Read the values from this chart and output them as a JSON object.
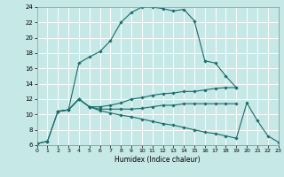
{
  "xlabel": "Humidex (Indice chaleur)",
  "bg_color": "#c6e8e6",
  "grid_color": "#ffffff",
  "line_color": "#1a6b6b",
  "xlim": [
    0,
    23
  ],
  "ylim": [
    6,
    24
  ],
  "xtick_labels": [
    "0",
    "1",
    "2",
    "3",
    "4",
    "5",
    "6",
    "7",
    "8",
    "9",
    "10",
    "11",
    "12",
    "13",
    "14",
    "15",
    "16",
    "17",
    "18",
    "19",
    "20",
    "21",
    "22",
    "23"
  ],
  "ytick_labels": [
    "6",
    "8",
    "10",
    "12",
    "14",
    "16",
    "18",
    "20",
    "22",
    "24"
  ],
  "ytick_pos": [
    6,
    8,
    10,
    12,
    14,
    16,
    18,
    20,
    22,
    24
  ],
  "curve1_x": [
    0,
    1,
    2,
    3,
    4,
    5,
    6,
    7,
    8,
    9,
    10,
    11,
    12,
    13,
    14,
    15,
    16,
    17,
    18,
    19
  ],
  "curve1_y": [
    6.2,
    6.5,
    10.4,
    10.6,
    16.7,
    17.5,
    18.2,
    19.6,
    22.0,
    23.3,
    24.0,
    24.0,
    23.8,
    23.5,
    23.7,
    22.2,
    17.0,
    16.7,
    15.0,
    13.5
  ],
  "curve2_x": [
    2,
    3,
    4,
    5,
    6,
    7,
    8,
    9,
    10,
    11,
    12,
    13,
    14,
    15,
    16,
    17,
    18,
    19
  ],
  "curve2_y": [
    10.4,
    10.6,
    12.0,
    11.0,
    11.0,
    11.2,
    11.5,
    12.0,
    12.2,
    12.5,
    12.7,
    12.8,
    13.0,
    13.0,
    13.2,
    13.4,
    13.5,
    13.5
  ],
  "curve3_x": [
    2,
    3,
    4,
    5,
    6,
    7,
    8,
    9,
    10,
    11,
    12,
    13,
    14,
    15,
    16,
    17,
    18,
    19
  ],
  "curve3_y": [
    10.4,
    10.6,
    12.0,
    11.0,
    10.7,
    10.7,
    10.7,
    10.7,
    10.8,
    11.0,
    11.2,
    11.2,
    11.4,
    11.4,
    11.4,
    11.4,
    11.4,
    11.4
  ],
  "curve4_x": [
    0,
    1,
    2,
    3,
    4,
    5,
    6,
    7,
    8,
    9,
    10,
    11,
    12,
    13,
    14,
    15,
    16,
    17,
    18,
    19,
    20,
    21,
    22,
    23
  ],
  "curve4_y": [
    6.2,
    6.5,
    10.4,
    10.6,
    12.0,
    11.0,
    10.5,
    10.2,
    9.9,
    9.7,
    9.4,
    9.1,
    8.8,
    8.6,
    8.3,
    8.0,
    7.7,
    7.5,
    7.2,
    6.9,
    11.5,
    9.2,
    7.2,
    6.4
  ]
}
